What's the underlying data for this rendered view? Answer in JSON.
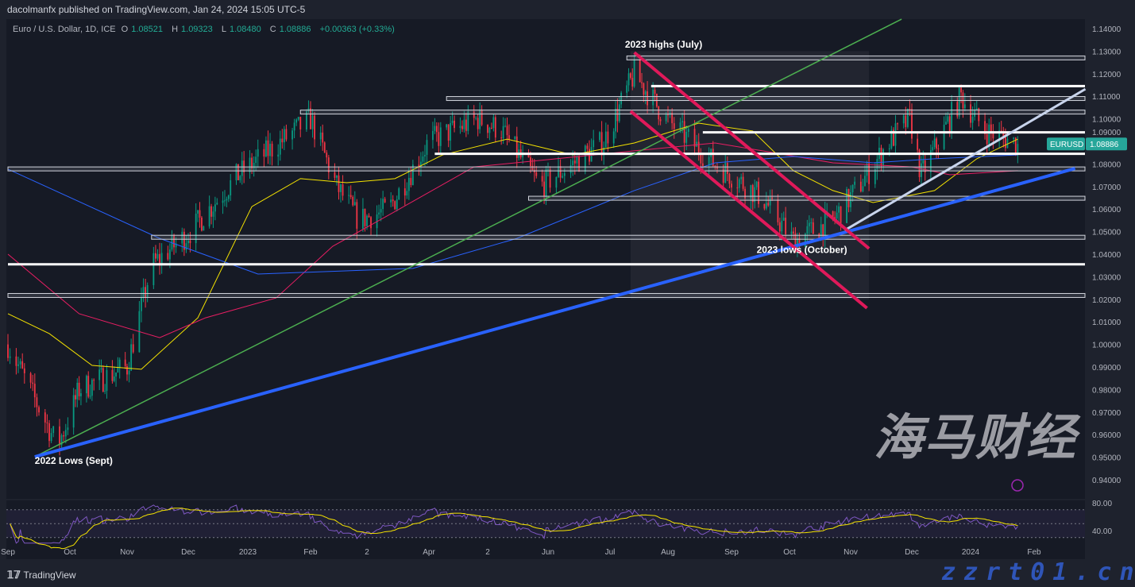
{
  "header": {
    "published": "dacolmanfx published on TradingView.com, Jan 24, 2024 15:05 UTC-5"
  },
  "legend": {
    "symbol": "Euro / U.S. Dollar, 1D, ICE",
    "open_label": "O",
    "open": "1.08521",
    "high_label": "H",
    "high": "1.09323",
    "low_label": "L",
    "low": "1.08480",
    "close_label": "C",
    "close": "1.08886",
    "change": "+0.00363 (+0.33%)"
  },
  "price_tag": {
    "symbol": "EURUSD",
    "price": "1.08886"
  },
  "footer": {
    "brand": "TradingView"
  },
  "watermark": {
    "cn": "海马财经",
    "url": "zzrt01.cn"
  },
  "colors": {
    "background": "#161a25",
    "up": "#089981",
    "down": "#f23645",
    "ma_yellow": "#f5e300",
    "ma_red": "#e91e63",
    "ma_blue": "#2962ff",
    "trend_green": "#4caf50",
    "trend_blue": "#2962ff",
    "trend_white": "#c8d4ec",
    "channel_pink": "#e0195a",
    "rsi": "#7e57c2",
    "rsi_ma": "#f5e300",
    "accent_tag": "#26a69a"
  },
  "chart_data": {
    "type": "candlestick",
    "symbol": "EURUSD",
    "interval": "1D",
    "ylim": [
      0.94,
      1.14
    ],
    "y_ticks": [
      "1.14000",
      "1.13000",
      "1.12000",
      "1.11000",
      "1.10000",
      "1.09000",
      "1.08000",
      "1.07000",
      "1.06000",
      "1.05000",
      "1.04000",
      "1.03000",
      "1.02000",
      "1.01000",
      "1.00000",
      "0.99000",
      "0.98000",
      "0.97000",
      "0.96000",
      "0.95000",
      "0.94000"
    ],
    "x_ticks": [
      {
        "label": "Sep",
        "date": "2022-09-01"
      },
      {
        "label": "Oct",
        "date": "2022-10-01"
      },
      {
        "label": "Nov",
        "date": "2022-11-01"
      },
      {
        "label": "Dec",
        "date": "2022-12-01"
      },
      {
        "label": "2023",
        "date": "2023-01-01"
      },
      {
        "label": "Feb",
        "date": "2023-02-01"
      },
      {
        "label": "2",
        "date": "2023-03-01"
      },
      {
        "label": "Apr",
        "date": "2023-04-01"
      },
      {
        "label": "2",
        "date": "2023-05-01"
      },
      {
        "label": "Jun",
        "date": "2023-06-01"
      },
      {
        "label": "Jul",
        "date": "2023-07-01"
      },
      {
        "label": "Aug",
        "date": "2023-08-01"
      },
      {
        "label": "Sep",
        "date": "2023-09-01"
      },
      {
        "label": "Oct",
        "date": "2023-10-01"
      },
      {
        "label": "Nov",
        "date": "2023-11-01"
      },
      {
        "label": "Dec",
        "date": "2023-12-01"
      },
      {
        "label": "2024",
        "date": "2024-01-01"
      },
      {
        "label": "Feb",
        "date": "2024-02-01"
      }
    ],
    "price_path": [
      [
        "2022-09-01",
        1.0
      ],
      [
        "2022-09-25",
        0.955
      ],
      [
        "2022-10-06",
        0.98
      ],
      [
        "2022-11-01",
        0.99
      ],
      [
        "2022-11-13",
        1.035
      ],
      [
        "2022-12-02",
        1.05
      ],
      [
        "2022-12-27",
        1.075
      ],
      [
        "2023-02-01",
        1.1
      ],
      [
        "2023-02-14",
        1.07
      ],
      [
        "2023-02-25",
        1.055
      ],
      [
        "2023-03-12",
        1.06
      ],
      [
        "2023-04-01",
        1.09
      ],
      [
        "2023-04-26",
        1.1
      ],
      [
        "2023-05-08",
        1.095
      ],
      [
        "2023-05-28",
        1.07
      ],
      [
        "2023-06-13",
        1.08
      ],
      [
        "2023-06-28",
        1.09
      ],
      [
        "2023-07-14",
        1.12
      ],
      [
        "2023-07-31",
        1.1
      ],
      [
        "2023-08-24",
        1.08
      ],
      [
        "2023-09-17",
        1.065
      ],
      [
        "2023-10-03",
        1.046
      ],
      [
        "2023-10-23",
        1.055
      ],
      [
        "2023-11-05",
        1.07
      ],
      [
        "2023-11-20",
        1.09
      ],
      [
        "2023-11-30",
        1.1
      ],
      [
        "2023-12-06",
        1.075
      ],
      [
        "2023-12-27",
        1.11
      ],
      [
        "2024-01-08",
        1.095
      ],
      [
        "2024-01-24",
        1.0889
      ]
    ],
    "moving_averages": [
      {
        "color": "ma_yellow",
        "points": [
          [
            "2022-09-01",
            1.0136
          ],
          [
            "2022-09-21",
            1.0048
          ],
          [
            "2022-10-13",
            0.9907
          ],
          [
            "2022-11-08",
            0.989
          ],
          [
            "2022-12-06",
            1.0118
          ],
          [
            "2023-01-03",
            1.0611
          ],
          [
            "2023-01-27",
            1.0735
          ],
          [
            "2023-02-19",
            1.0717
          ],
          [
            "2023-03-15",
            1.0735
          ],
          [
            "2023-04-08",
            1.084
          ],
          [
            "2023-05-11",
            1.091
          ],
          [
            "2023-06-13",
            1.084
          ],
          [
            "2023-07-14",
            1.0893
          ],
          [
            "2023-08-16",
            1.0981
          ],
          [
            "2023-09-12",
            1.0946
          ],
          [
            "2023-10-03",
            1.077
          ],
          [
            "2023-10-23",
            1.0682
          ],
          [
            "2023-11-12",
            1.0629
          ],
          [
            "2023-12-13",
            1.0682
          ],
          [
            "2024-01-04",
            1.0823
          ],
          [
            "2024-01-24",
            1.091
          ]
        ]
      },
      {
        "color": "ma_red",
        "points": [
          [
            "2022-09-01",
            1.04
          ],
          [
            "2022-10-06",
            1.0136
          ],
          [
            "2022-11-17",
            1.003
          ],
          [
            "2022-12-10",
            1.0118
          ],
          [
            "2023-01-15",
            1.0206
          ],
          [
            "2023-02-12",
            1.0435
          ],
          [
            "2023-03-16",
            1.0594
          ],
          [
            "2023-04-24",
            1.0787
          ],
          [
            "2023-06-05",
            1.0823
          ],
          [
            "2023-07-14",
            1.0858
          ],
          [
            "2023-08-24",
            1.0893
          ],
          [
            "2023-09-17",
            1.0858
          ],
          [
            "2023-10-23",
            1.0805
          ],
          [
            "2023-12-01",
            1.0787
          ],
          [
            "2023-12-21",
            1.0752
          ],
          [
            "2024-01-24",
            1.077
          ]
        ]
      },
      {
        "color": "ma_blue",
        "points": [
          [
            "2022-09-01",
            1.0777
          ],
          [
            "2022-11-17",
            1.047
          ],
          [
            "2023-01-06",
            1.0312
          ],
          [
            "2023-03-24",
            1.0337
          ],
          [
            "2023-05-16",
            1.047
          ],
          [
            "2023-07-14",
            1.0682
          ],
          [
            "2023-08-24",
            1.0805
          ],
          [
            "2023-10-03",
            1.0833
          ],
          [
            "2023-11-12",
            1.0805
          ],
          [
            "2023-12-13",
            1.0823
          ],
          [
            "2024-01-24",
            1.084
          ]
        ]
      }
    ],
    "levels": [
      {
        "price": 1.127,
        "from": "2023-07-10",
        "style": "zone"
      },
      {
        "price": 1.1145,
        "from": "2023-07-23",
        "style": "line"
      },
      {
        "price": 1.109,
        "from": "2023-04-10",
        "style": "zone"
      },
      {
        "price": 1.103,
        "from": "2023-01-27",
        "style": "zone"
      },
      {
        "price": 1.094,
        "from": "2023-08-18",
        "style": "line"
      },
      {
        "price": 1.0845,
        "from": "2023-04-04",
        "style": "line"
      },
      {
        "price": 1.0778,
        "from": "2022-09-01",
        "style": "zone"
      },
      {
        "price": 1.0648,
        "from": "2023-05-22",
        "style": "zone"
      },
      {
        "price": 1.0475,
        "from": "2022-11-13",
        "style": "zone"
      },
      {
        "price": 1.0355,
        "from": "2022-09-01",
        "style": "line"
      },
      {
        "price": 1.0217,
        "from": "2022-09-01",
        "style": "zone"
      }
    ],
    "trendlines": [
      {
        "color": "trend_green",
        "from": [
          "2022-09-14",
          0.9502
        ],
        "to": [
          "2023-11-26",
          1.1442
        ]
      },
      {
        "color": "trend_blue",
        "from": [
          "2022-09-14",
          0.9502
        ],
        "to": [
          "2024-02-21",
          1.078
        ]
      },
      {
        "color": "trend_white",
        "from": [
          "2023-10-29",
          1.0506
        ],
        "to": [
          "2024-02-26",
          1.1132
        ]
      },
      {
        "color": "channel_pink",
        "from": [
          "2023-07-14",
          1.1294
        ],
        "to": [
          "2023-11-10",
          1.0425
        ]
      },
      {
        "color": "channel_pink",
        "from": [
          "2023-07-12",
          1.1034
        ],
        "to": [
          "2023-11-09",
          1.0161
        ]
      }
    ],
    "annotations": [
      {
        "text": "2023 highs (July)",
        "date": "2023-07-09",
        "price": 1.1315
      },
      {
        "text": "2023 lows (October)",
        "date": "2023-09-14",
        "price": 1.0405
      },
      {
        "text": "2022 Lows (Sept)",
        "date": "2022-09-14",
        "price": 0.947
      }
    ],
    "rsi_pane": {
      "ticks": [
        "80.00",
        "40.00"
      ],
      "levels": [
        70,
        50,
        30
      ]
    }
  }
}
